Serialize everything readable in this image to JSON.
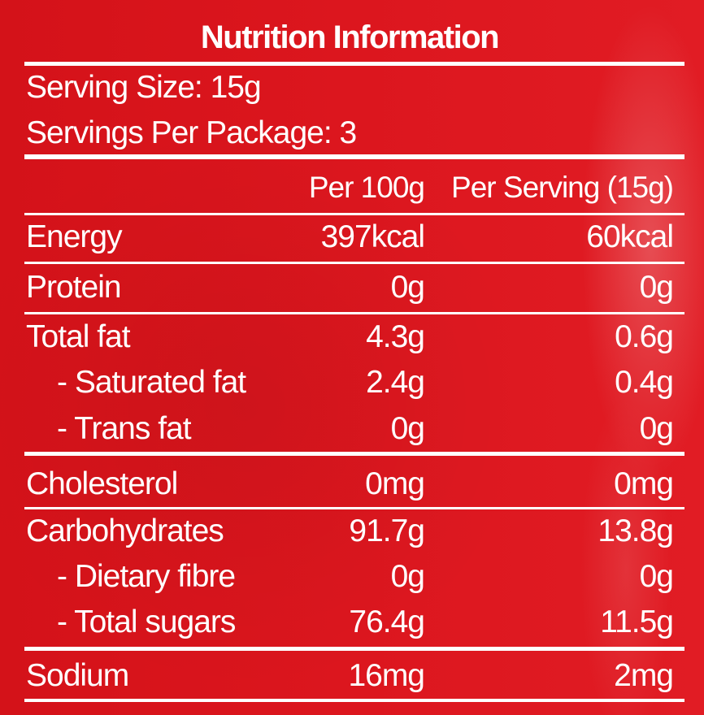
{
  "panel": {
    "title": "Nutrition Information",
    "serving_size": "Serving Size: 15g",
    "servings_per_package": "Servings Per Package: 3",
    "columns": [
      "Per 100g",
      "Per Serving (15g)"
    ],
    "rows": [
      {
        "label": "Energy",
        "per100": "397kcal",
        "perServing": "60kcal"
      },
      {
        "label": "Protein",
        "per100": "0g",
        "perServing": "0g"
      },
      {
        "label": "Total fat",
        "per100": "4.3g",
        "perServing": "0.6g"
      },
      {
        "label": "- Saturated fat",
        "per100": "2.4g",
        "perServing": "0.4g"
      },
      {
        "label": "- Trans fat",
        "per100": "0g",
        "perServing": "0g"
      },
      {
        "label": "Cholesterol",
        "per100": "0mg",
        "perServing": "0mg"
      },
      {
        "label": "Carbohydrates",
        "per100": "91.7g",
        "perServing": "13.8g"
      },
      {
        "label": "- Dietary fibre",
        "per100": "0g",
        "perServing": "0g"
      },
      {
        "label": "- Total sugars",
        "per100": "76.4g",
        "perServing": "11.5g"
      },
      {
        "label": "Sodium",
        "per100": "16mg",
        "perServing": "2mg"
      }
    ]
  },
  "colors": {
    "background": "#d9141c",
    "text": "#ffffff"
  }
}
